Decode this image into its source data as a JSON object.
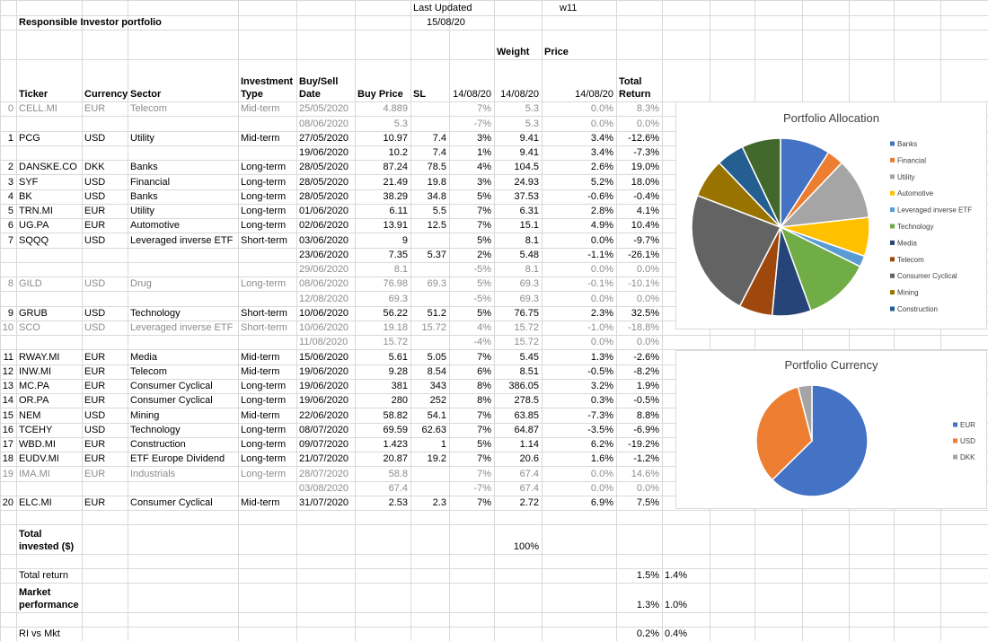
{
  "header": {
    "last_updated": "Last Updated",
    "date": "15/08/20",
    "week": "w11",
    "title": "Responsible Investor portfolio",
    "weight": "Weight",
    "price": "Price"
  },
  "columns": [
    "Ticker",
    "Currency",
    "Sector",
    "Investment Type",
    "Buy/Sell Date",
    "Buy Price",
    "SL",
    "14/08/20",
    "14/08/20",
    "14/08/20",
    "Total Return"
  ],
  "rows": [
    {
      "muted": true,
      "cells": [
        "0",
        "CELL.MI",
        "EUR",
        "Telecom",
        "Mid-term",
        "25/05/2020",
        "4.889",
        null,
        "7%",
        "5.3",
        "0.0%",
        "8.3%"
      ]
    },
    {
      "muted": true,
      "cells": [
        null,
        null,
        null,
        null,
        null,
        "08/06/2020",
        "5.3",
        null,
        "-7%",
        "5.3",
        "0.0%",
        "0.0%"
      ]
    },
    {
      "muted": false,
      "cells": [
        "1",
        "PCG",
        "USD",
        "Utility",
        "Mid-term",
        "27/05/2020",
        "10.97",
        "7.4",
        "3%",
        "9.41",
        "3.4%",
        "-12.6%"
      ]
    },
    {
      "muted": false,
      "cells": [
        null,
        null,
        null,
        null,
        null,
        "19/06/2020",
        "10.2",
        "7.4",
        "1%",
        "9.41",
        "3.4%",
        "-7.3%"
      ]
    },
    {
      "muted": false,
      "cells": [
        "2",
        "DANSKE.CO",
        "DKK",
        "Banks",
        "Long-term",
        "28/05/2020",
        "87.24",
        "78.5",
        "4%",
        "104.5",
        "2.6%",
        "19.0%"
      ]
    },
    {
      "muted": false,
      "cells": [
        "3",
        "SYF",
        "USD",
        "Financial",
        "Long-term",
        "28/05/2020",
        "21.49",
        "19.8",
        "3%",
        "24.93",
        "5.2%",
        "18.0%"
      ]
    },
    {
      "muted": false,
      "cells": [
        "4",
        "BK",
        "USD",
        "Banks",
        "Long-term",
        "28/05/2020",
        "38.29",
        "34.8",
        "5%",
        "37.53",
        "-0.6%",
        "-0.4%"
      ]
    },
    {
      "muted": false,
      "cells": [
        "5",
        "TRN.MI",
        "EUR",
        "Utility",
        "Long-term",
        "01/06/2020",
        "6.11",
        "5.5",
        "7%",
        "6.31",
        "2.8%",
        "4.1%"
      ]
    },
    {
      "muted": false,
      "cells": [
        "6",
        "UG.PA",
        "EUR",
        "Automotive",
        "Long-term",
        "02/06/2020",
        "13.91",
        "12.5",
        "7%",
        "15.1",
        "4.9%",
        "10.4%"
      ]
    },
    {
      "muted": false,
      "cells": [
        "7",
        "SQQQ",
        "USD",
        "Leveraged inverse ETF",
        "Short-term",
        "03/06/2020",
        "9",
        null,
        "5%",
        "8.1",
        "0.0%",
        "-9.7%"
      ]
    },
    {
      "muted": false,
      "cells": [
        null,
        null,
        null,
        null,
        null,
        "23/06/2020",
        "7.35",
        "5.37",
        "2%",
        "5.48",
        "-1.1%",
        "-26.1%"
      ]
    },
    {
      "muted": true,
      "cells": [
        null,
        null,
        null,
        null,
        null,
        "29/06/2020",
        "8.1",
        null,
        "-5%",
        "8.1",
        "0.0%",
        "0.0%"
      ]
    },
    {
      "muted": true,
      "cells": [
        "8",
        "GILD",
        "USD",
        "Drug",
        "Long-term",
        "08/06/2020",
        "76.98",
        "69.3",
        "5%",
        "69.3",
        "-0.1%",
        "-10.1%"
      ]
    },
    {
      "muted": true,
      "cells": [
        null,
        null,
        null,
        null,
        null,
        "12/08/2020",
        "69.3",
        null,
        "-5%",
        "69.3",
        "0.0%",
        "0.0%"
      ]
    },
    {
      "muted": false,
      "cells": [
        "9",
        "GRUB",
        "USD",
        "Technology",
        "Short-term",
        "10/06/2020",
        "56.22",
        "51.2",
        "5%",
        "76.75",
        "2.3%",
        "32.5%"
      ]
    },
    {
      "muted": true,
      "cells": [
        "10",
        "SCO",
        "USD",
        "Leveraged inverse ETF",
        "Short-term",
        "10/06/2020",
        "19.18",
        "15.72",
        "4%",
        "15.72",
        "-1.0%",
        "-18.8%"
      ]
    },
    {
      "muted": true,
      "cells": [
        null,
        null,
        null,
        null,
        null,
        "11/08/2020",
        "15.72",
        null,
        "-4%",
        "15.72",
        "0.0%",
        "0.0%"
      ]
    },
    {
      "muted": false,
      "cells": [
        "11",
        "RWAY.MI",
        "EUR",
        "Media",
        "Mid-term",
        "15/06/2020",
        "5.61",
        "5.05",
        "7%",
        "5.45",
        "1.3%",
        "-2.6%"
      ]
    },
    {
      "muted": false,
      "cells": [
        "12",
        "INW.MI",
        "EUR",
        "Telecom",
        "Mid-term",
        "19/06/2020",
        "9.28",
        "8.54",
        "6%",
        "8.51",
        "-0.5%",
        "-8.2%"
      ]
    },
    {
      "muted": false,
      "cells": [
        "13",
        "MC.PA",
        "EUR",
        "Consumer Cyclical",
        "Long-term",
        "19/06/2020",
        "381",
        "343",
        "8%",
        "386.05",
        "3.2%",
        "1.9%"
      ]
    },
    {
      "muted": false,
      "cells": [
        "14",
        "OR.PA",
        "EUR",
        "Consumer Cyclical",
        "Long-term",
        "19/06/2020",
        "280",
        "252",
        "8%",
        "278.5",
        "0.3%",
        "-0.5%"
      ]
    },
    {
      "muted": false,
      "cells": [
        "15",
        "NEM",
        "USD",
        "Mining",
        "Mid-term",
        "22/06/2020",
        "58.82",
        "54.1",
        "7%",
        "63.85",
        "-7.3%",
        "8.8%"
      ]
    },
    {
      "muted": false,
      "cells": [
        "16",
        "TCEHY",
        "USD",
        "Technology",
        "Long-term",
        "08/07/2020",
        "69.59",
        "62.63",
        "7%",
        "64.87",
        "-3.5%",
        "-6.9%"
      ]
    },
    {
      "muted": false,
      "cells": [
        "17",
        "WBD.MI",
        "EUR",
        "Construction",
        "Long-term",
        "09/07/2020",
        "1.423",
        "1",
        "5%",
        "1.14",
        "6.2%",
        "-19.2%"
      ]
    },
    {
      "muted": false,
      "cells": [
        "18",
        "EUDV.MI",
        "EUR",
        "ETF Europe Dividend",
        "Long-term",
        "21/07/2020",
        "20.87",
        "19.2",
        "7%",
        "20.6",
        "1.6%",
        "-1.2%"
      ]
    },
    {
      "muted": true,
      "cells": [
        "19",
        "IMA.MI",
        "EUR",
        "Industrials",
        "Long-term",
        "28/07/2020",
        "58.8",
        null,
        "7%",
        "67.4",
        "0.0%",
        "14.6%"
      ]
    },
    {
      "muted": true,
      "cells": [
        null,
        null,
        null,
        null,
        null,
        "03/08/2020",
        "67.4",
        null,
        "-7%",
        "67.4",
        "0.0%",
        "0.0%"
      ]
    },
    {
      "muted": false,
      "cells": [
        "20",
        "ELC.MI",
        "EUR",
        "Consumer Cyclical",
        "Mid-term",
        "31/07/2020",
        "2.53",
        "2.3",
        "7%",
        "2.72",
        "6.9%",
        "7.5%"
      ]
    }
  ],
  "footer": [
    {
      "label": "Total invested ($)",
      "bold": true,
      "weight": "100%"
    },
    {
      "label": "Total return",
      "bold": false,
      "return": "1.5%",
      "total_return": "1.4%"
    },
    {
      "label": "Market performance",
      "bold": true,
      "return": "1.3%",
      "total_return": "1.0%"
    },
    {
      "label": "RI vs Mkt",
      "bold": false,
      "return": "0.2%",
      "total_return": "0.4%"
    }
  ],
  "chart_data": [
    {
      "type": "pie",
      "title": "Portfolio Allocation",
      "categories": [
        "Banks",
        "Financial",
        "Utility",
        "Automotive",
        "Leveraged inverse ETF",
        "Technology",
        "Media",
        "Telecom",
        "Consumer Cyclical",
        "Mining",
        "Construction",
        null
      ],
      "values": [
        9,
        3,
        11,
        7,
        2,
        12,
        7,
        6,
        23,
        7,
        5,
        7
      ],
      "colors": [
        "#4472c4",
        "#ed7d31",
        "#a5a5a5",
        "#ffc000",
        "#5b9bd5",
        "#70ad47",
        "#264478",
        "#9e480e",
        "#636363",
        "#997300",
        "#255e91",
        "#43682b"
      ]
    },
    {
      "type": "pie",
      "title": "Portfolio Currency",
      "categories": [
        "EUR",
        "USD",
        "DKK"
      ],
      "values": [
        62,
        33,
        4
      ],
      "colors": [
        "#4472c4",
        "#ed7d31",
        "#a5a5a5"
      ]
    }
  ]
}
